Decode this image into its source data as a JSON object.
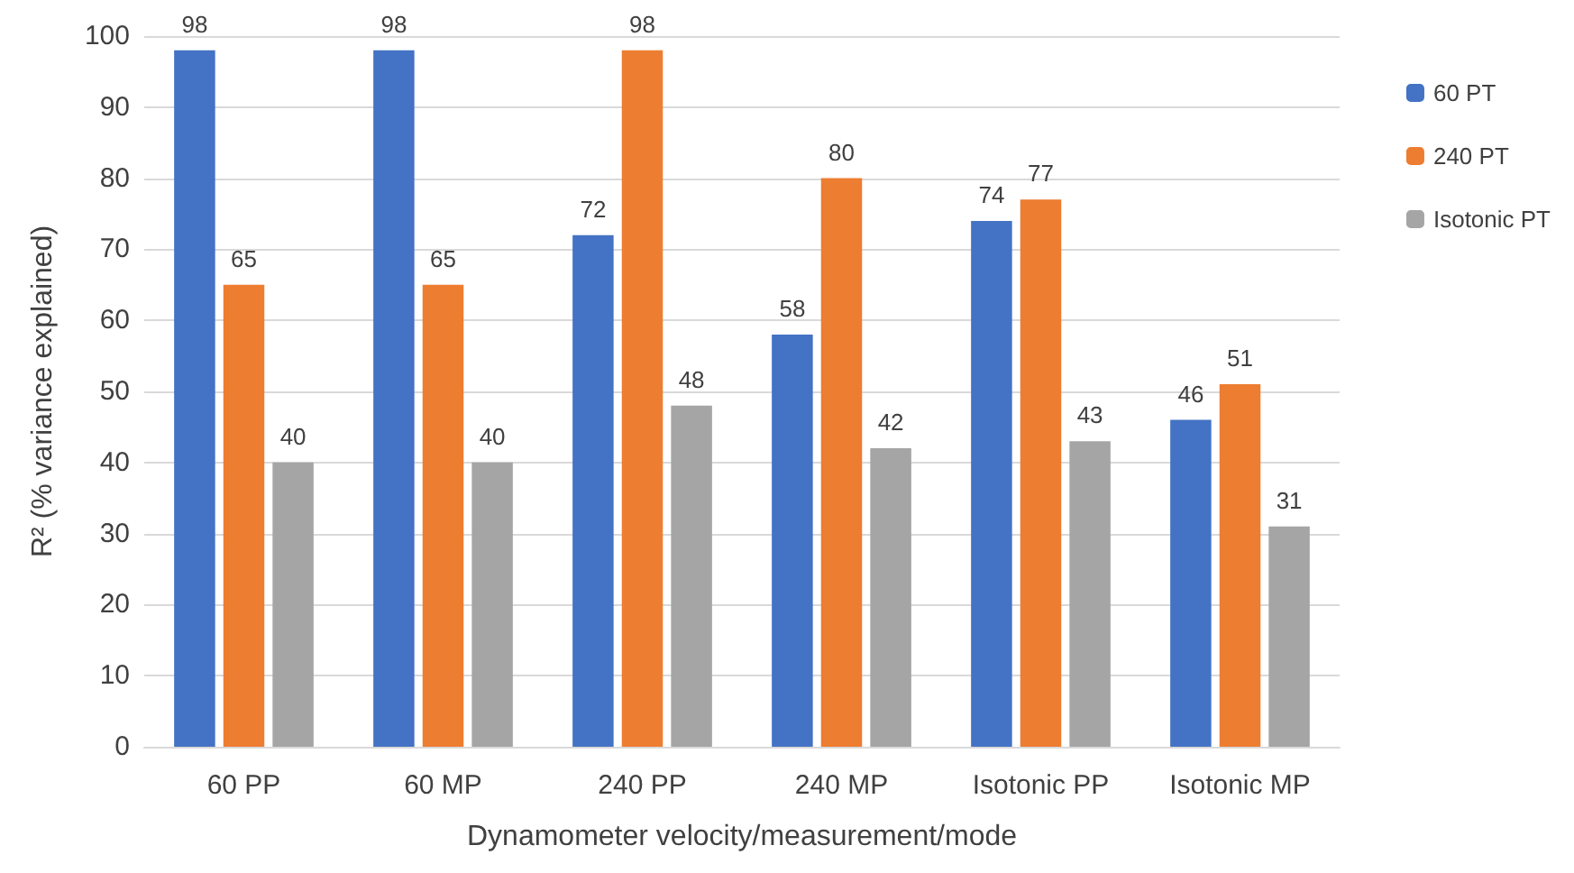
{
  "chart_data": {
    "type": "bar",
    "xlabel": "Dynamometer velocity/measurement/mode",
    "ylabel": "R² (% variance explained)",
    "categories": [
      "60 PP",
      "60 MP",
      "240 PP",
      "240 MP",
      "Isotonic PP",
      "Isotonic MP"
    ],
    "series": [
      {
        "name": "60 PT",
        "color": "#4472c4",
        "values": [
          98,
          98,
          72,
          58,
          74,
          46
        ]
      },
      {
        "name": "240 PT",
        "color": "#ed7d31",
        "values": [
          65,
          65,
          98,
          80,
          77,
          51
        ]
      },
      {
        "name": "Isotonic PT",
        "color": "#a5a5a5",
        "values": [
          40,
          40,
          48,
          42,
          43,
          31
        ]
      }
    ],
    "ylim": [
      0,
      100
    ],
    "yticks": [
      0,
      10,
      20,
      30,
      40,
      50,
      60,
      70,
      80,
      90,
      100
    ],
    "grid": "y",
    "legend": "top right",
    "data_labels": true
  }
}
